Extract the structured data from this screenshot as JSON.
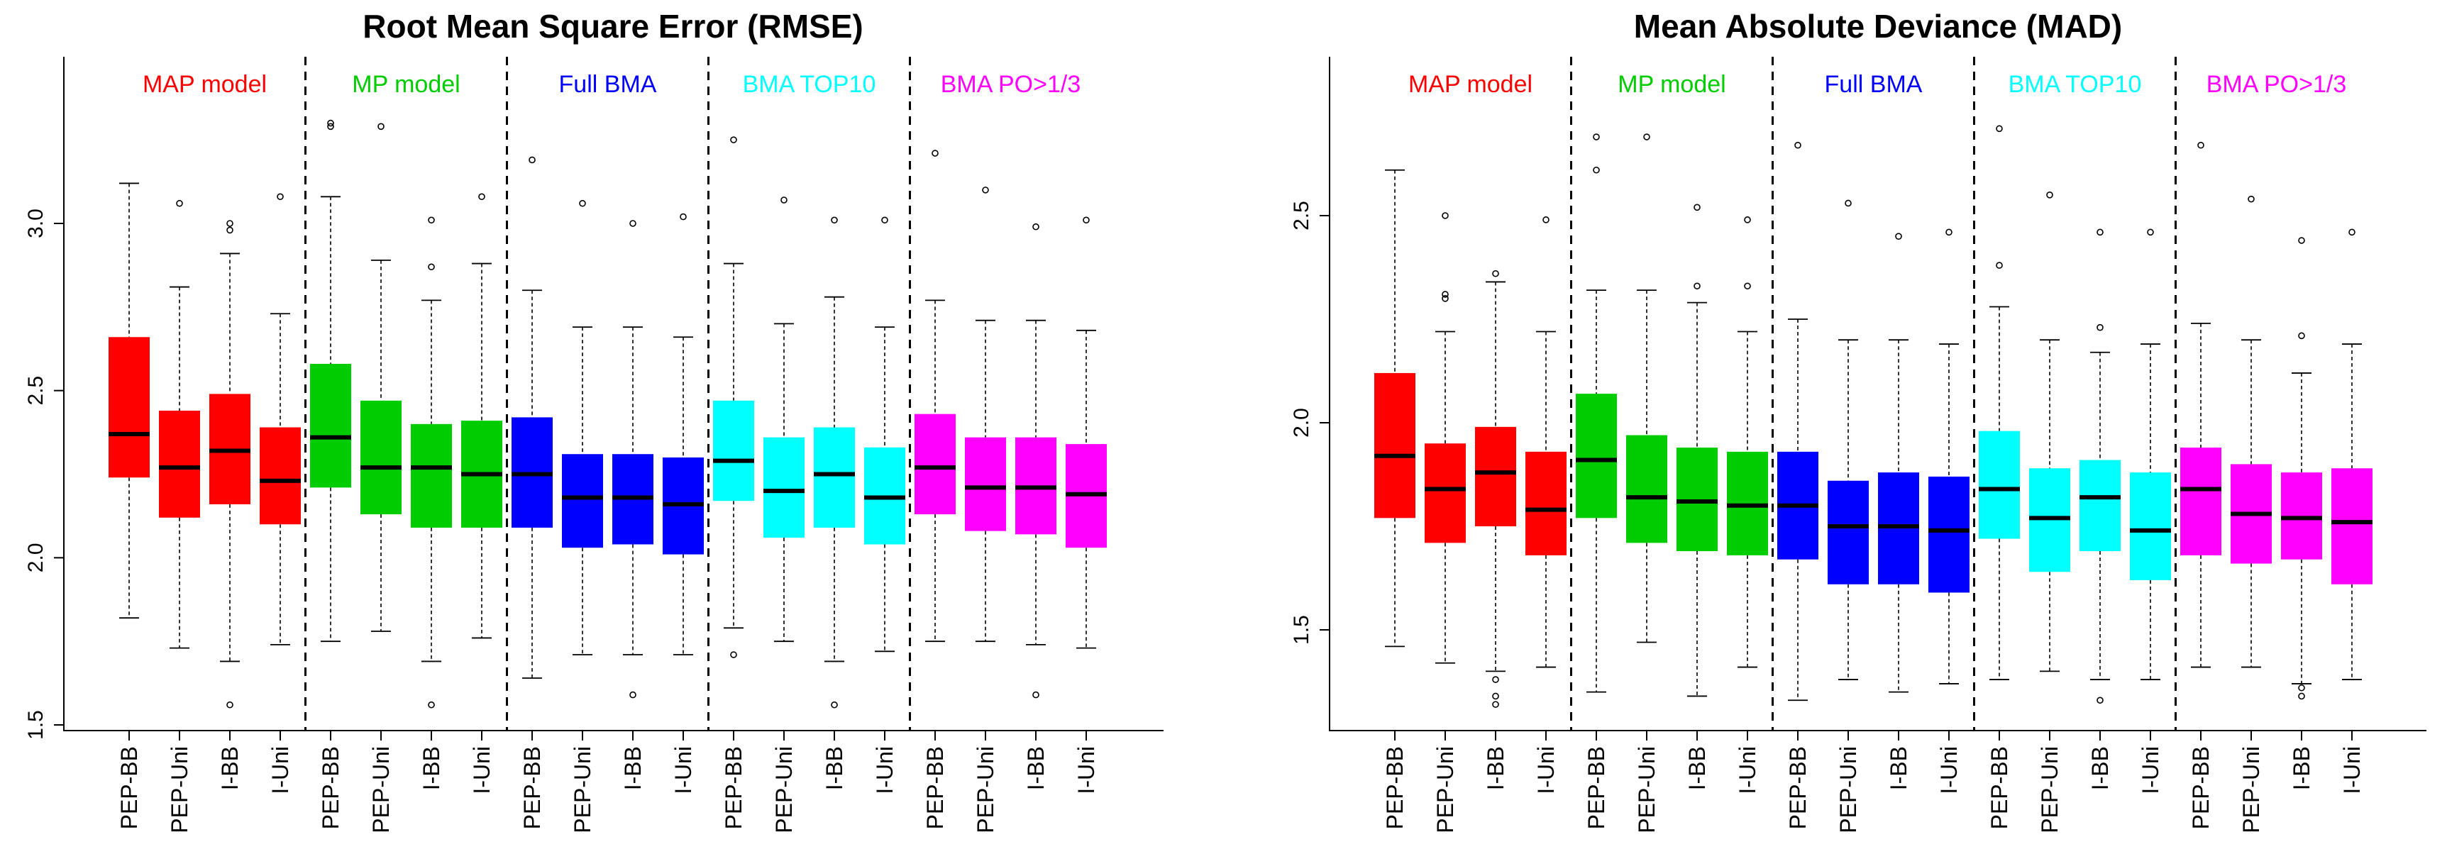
{
  "chart_data": [
    {
      "type": "box",
      "title": "Root Mean Square Error (RMSE)",
      "xlabel": "",
      "ylabel": "",
      "ylim": [
        1.5,
        3.45
      ],
      "yticks": [
        1.5,
        2.0,
        2.5,
        3.0
      ],
      "ytick_labels": [
        "1.5",
        "2.0",
        "2.5",
        "3.0"
      ],
      "categories": [
        "PEP-BB",
        "PEP-Uni",
        "I-BB",
        "I-Uni"
      ],
      "groups": [
        {
          "label": "MAP model",
          "color": "#FF0000",
          "boxes": [
            {
              "category": "PEP-BB",
              "whisker_low": 1.82,
              "q1": 2.24,
              "median": 2.37,
              "q3": 2.66,
              "whisker_high": 3.12,
              "outliers": []
            },
            {
              "category": "PEP-Uni",
              "whisker_low": 1.73,
              "q1": 2.12,
              "median": 2.27,
              "q3": 2.44,
              "whisker_high": 2.81,
              "outliers": [
                3.06
              ]
            },
            {
              "category": "I-BB",
              "whisker_low": 1.69,
              "q1": 2.16,
              "median": 2.32,
              "q3": 2.49,
              "whisker_high": 2.91,
              "outliers": [
                2.98,
                3.0,
                1.56
              ]
            },
            {
              "category": "I-Uni",
              "whisker_low": 1.74,
              "q1": 2.1,
              "median": 2.23,
              "q3": 2.39,
              "whisker_high": 2.73,
              "outliers": [
                3.08
              ]
            }
          ]
        },
        {
          "label": "MP model",
          "color": "#00CD00",
          "boxes": [
            {
              "category": "PEP-BB",
              "whisker_low": 1.75,
              "q1": 2.21,
              "median": 2.36,
              "q3": 2.58,
              "whisker_high": 3.08,
              "outliers": [
                3.29,
                3.3
              ]
            },
            {
              "category": "PEP-Uni",
              "whisker_low": 1.78,
              "q1": 2.13,
              "median": 2.27,
              "q3": 2.47,
              "whisker_high": 2.89,
              "outliers": [
                3.29
              ]
            },
            {
              "category": "I-BB",
              "whisker_low": 1.69,
              "q1": 2.09,
              "median": 2.27,
              "q3": 2.4,
              "whisker_high": 2.77,
              "outliers": [
                2.87,
                3.01,
                1.56
              ]
            },
            {
              "category": "I-Uni",
              "whisker_low": 1.76,
              "q1": 2.09,
              "median": 2.25,
              "q3": 2.41,
              "whisker_high": 2.88,
              "outliers": [
                3.08
              ]
            }
          ]
        },
        {
          "label": "Full BMA",
          "color": "#0000FF",
          "boxes": [
            {
              "category": "PEP-BB",
              "whisker_low": 1.64,
              "q1": 2.09,
              "median": 2.25,
              "q3": 2.42,
              "whisker_high": 2.8,
              "outliers": [
                3.19
              ]
            },
            {
              "category": "PEP-Uni",
              "whisker_low": 1.71,
              "q1": 2.03,
              "median": 2.18,
              "q3": 2.31,
              "whisker_high": 2.69,
              "outliers": [
                3.06
              ]
            },
            {
              "category": "I-BB",
              "whisker_low": 1.71,
              "q1": 2.04,
              "median": 2.18,
              "q3": 2.31,
              "whisker_high": 2.69,
              "outliers": [
                3.0,
                1.59
              ]
            },
            {
              "category": "I-Uni",
              "whisker_low": 1.71,
              "q1": 2.01,
              "median": 2.16,
              "q3": 2.3,
              "whisker_high": 2.66,
              "outliers": [
                3.02
              ]
            }
          ]
        },
        {
          "label": "BMA TOP10",
          "color": "#00FFFF",
          "boxes": [
            {
              "category": "PEP-BB",
              "whisker_low": 1.79,
              "q1": 2.17,
              "median": 2.29,
              "q3": 2.47,
              "whisker_high": 2.88,
              "outliers": [
                3.25,
                1.71
              ]
            },
            {
              "category": "PEP-Uni",
              "whisker_low": 1.75,
              "q1": 2.06,
              "median": 2.2,
              "q3": 2.36,
              "whisker_high": 2.7,
              "outliers": [
                3.07
              ]
            },
            {
              "category": "I-BB",
              "whisker_low": 1.69,
              "q1": 2.09,
              "median": 2.25,
              "q3": 2.39,
              "whisker_high": 2.78,
              "outliers": [
                3.01,
                1.56
              ]
            },
            {
              "category": "I-Uni",
              "whisker_low": 1.72,
              "q1": 2.04,
              "median": 2.18,
              "q3": 2.33,
              "whisker_high": 2.69,
              "outliers": [
                3.01
              ]
            }
          ]
        },
        {
          "label": "BMA PO>1/3",
          "color": "#FF00FF",
          "boxes": [
            {
              "category": "PEP-BB",
              "whisker_low": 1.75,
              "q1": 2.13,
              "median": 2.27,
              "q3": 2.43,
              "whisker_high": 2.77,
              "outliers": [
                3.21
              ]
            },
            {
              "category": "PEP-Uni",
              "whisker_low": 1.75,
              "q1": 2.08,
              "median": 2.21,
              "q3": 2.36,
              "whisker_high": 2.71,
              "outliers": [
                3.1
              ]
            },
            {
              "category": "I-BB",
              "whisker_low": 1.74,
              "q1": 2.07,
              "median": 2.21,
              "q3": 2.36,
              "whisker_high": 2.71,
              "outliers": [
                2.99,
                1.59
              ]
            },
            {
              "category": "I-Uni",
              "whisker_low": 1.73,
              "q1": 2.03,
              "median": 2.19,
              "q3": 2.34,
              "whisker_high": 2.68,
              "outliers": [
                3.01
              ]
            }
          ]
        }
      ]
    },
    {
      "type": "box",
      "title": "Mean Absolute Deviance (MAD)",
      "xlabel": "",
      "ylabel": "",
      "ylim": [
        1.25,
        2.87
      ],
      "yticks": [
        1.5,
        2.0,
        2.5
      ],
      "ytick_labels": [
        "1.5",
        "2.0",
        "2.5"
      ],
      "categories": [
        "PEP-BB",
        "PEP-Uni",
        "I-BB",
        "I-Uni"
      ],
      "groups": [
        {
          "label": "MAP model",
          "color": "#FF0000",
          "boxes": [
            {
              "category": "PEP-BB",
              "whisker_low": 1.46,
              "q1": 1.77,
              "median": 1.92,
              "q3": 2.12,
              "whisker_high": 2.61,
              "outliers": []
            },
            {
              "category": "PEP-Uni",
              "whisker_low": 1.42,
              "q1": 1.71,
              "median": 1.84,
              "q3": 1.95,
              "whisker_high": 2.22,
              "outliers": [
                2.3,
                2.31,
                2.5
              ]
            },
            {
              "category": "I-BB",
              "whisker_low": 1.4,
              "q1": 1.75,
              "median": 1.88,
              "q3": 1.99,
              "whisker_high": 2.34,
              "outliers": [
                2.36,
                1.38,
                1.34,
                1.32
              ]
            },
            {
              "category": "I-Uni",
              "whisker_low": 1.41,
              "q1": 1.68,
              "median": 1.79,
              "q3": 1.93,
              "whisker_high": 2.22,
              "outliers": [
                2.49
              ]
            }
          ]
        },
        {
          "label": "MP model",
          "color": "#00CD00",
          "boxes": [
            {
              "category": "PEP-BB",
              "whisker_low": 1.35,
              "q1": 1.77,
              "median": 1.91,
              "q3": 2.07,
              "whisker_high": 2.32,
              "outliers": [
                2.69,
                2.61
              ]
            },
            {
              "category": "PEP-Uni",
              "whisker_low": 1.47,
              "q1": 1.71,
              "median": 1.82,
              "q3": 1.97,
              "whisker_high": 2.32,
              "outliers": [
                2.69
              ]
            },
            {
              "category": "I-BB",
              "whisker_low": 1.34,
              "q1": 1.69,
              "median": 1.81,
              "q3": 1.94,
              "whisker_high": 2.29,
              "outliers": [
                2.52,
                2.33
              ]
            },
            {
              "category": "I-Uni",
              "whisker_low": 1.41,
              "q1": 1.68,
              "median": 1.8,
              "q3": 1.93,
              "whisker_high": 2.22,
              "outliers": [
                2.49,
                2.33
              ]
            }
          ]
        },
        {
          "label": "Full BMA",
          "color": "#0000FF",
          "boxes": [
            {
              "category": "PEP-BB",
              "whisker_low": 1.33,
              "q1": 1.67,
              "median": 1.8,
              "q3": 1.93,
              "whisker_high": 2.25,
              "outliers": [
                2.67
              ]
            },
            {
              "category": "PEP-Uni",
              "whisker_low": 1.38,
              "q1": 1.61,
              "median": 1.75,
              "q3": 1.86,
              "whisker_high": 2.2,
              "outliers": [
                2.53
              ]
            },
            {
              "category": "I-BB",
              "whisker_low": 1.35,
              "q1": 1.61,
              "median": 1.75,
              "q3": 1.88,
              "whisker_high": 2.2,
              "outliers": [
                2.45
              ]
            },
            {
              "category": "I-Uni",
              "whisker_low": 1.37,
              "q1": 1.59,
              "median": 1.74,
              "q3": 1.87,
              "whisker_high": 2.19,
              "outliers": [
                2.46
              ]
            }
          ]
        },
        {
          "label": "BMA TOP10",
          "color": "#00FFFF",
          "boxes": [
            {
              "category": "PEP-BB",
              "whisker_low": 1.38,
              "q1": 1.72,
              "median": 1.84,
              "q3": 1.98,
              "whisker_high": 2.28,
              "outliers": [
                2.71,
                2.38
              ]
            },
            {
              "category": "PEP-Uni",
              "whisker_low": 1.4,
              "q1": 1.64,
              "median": 1.77,
              "q3": 1.89,
              "whisker_high": 2.2,
              "outliers": [
                2.55
              ]
            },
            {
              "category": "I-BB",
              "whisker_low": 1.38,
              "q1": 1.69,
              "median": 1.82,
              "q3": 1.91,
              "whisker_high": 2.17,
              "outliers": [
                2.46,
                2.23,
                1.33
              ]
            },
            {
              "category": "I-Uni",
              "whisker_low": 1.38,
              "q1": 1.62,
              "median": 1.74,
              "q3": 1.88,
              "whisker_high": 2.19,
              "outliers": [
                2.46
              ]
            }
          ]
        },
        {
          "label": "BMA PO>1/3",
          "color": "#FF00FF",
          "boxes": [
            {
              "category": "PEP-BB",
              "whisker_low": 1.41,
              "q1": 1.68,
              "median": 1.84,
              "q3": 1.94,
              "whisker_high": 2.24,
              "outliers": [
                2.67
              ]
            },
            {
              "category": "PEP-Uni",
              "whisker_low": 1.41,
              "q1": 1.66,
              "median": 1.78,
              "q3": 1.9,
              "whisker_high": 2.2,
              "outliers": [
                2.54
              ]
            },
            {
              "category": "I-BB",
              "whisker_low": 1.37,
              "q1": 1.67,
              "median": 1.77,
              "q3": 1.88,
              "whisker_high": 2.12,
              "outliers": [
                2.44,
                2.21,
                1.36,
                1.34
              ]
            },
            {
              "category": "I-Uni",
              "whisker_low": 1.38,
              "q1": 1.61,
              "median": 1.76,
              "q3": 1.89,
              "whisker_high": 2.19,
              "outliers": [
                2.46
              ]
            }
          ]
        }
      ]
    }
  ]
}
